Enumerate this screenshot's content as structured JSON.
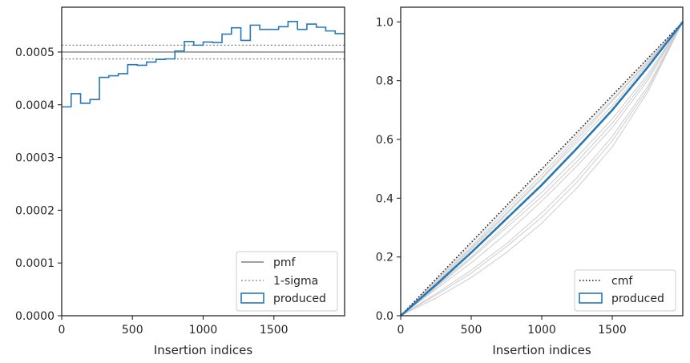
{
  "colors": {
    "hist": "#2878b5",
    "pmf": "#808080",
    "sigma": "#808080",
    "cmf": "#111111",
    "sample": "#c8c8c8",
    "axes": "#262626",
    "legend_border": "#cccccc"
  },
  "chart_data": [
    {
      "type": "histogram-step",
      "xlabel": "Insertion indices",
      "xlim": [
        0,
        2000
      ],
      "ylim": [
        0,
        0.000585
      ],
      "xticks": [
        0,
        500,
        1000,
        1500
      ],
      "xtick_labels": [
        "0",
        "500",
        "1000",
        "1500"
      ],
      "yticks": [
        0,
        0.0001,
        0.0002,
        0.0003,
        0.0004,
        0.0005
      ],
      "ytick_labels": [
        "0.0000",
        "0.0001",
        "0.0002",
        "0.0003",
        "0.0004",
        "0.0005"
      ],
      "pmf": 0.0005,
      "sigma_band": [
        0.000487,
        0.000513
      ],
      "bin_width": 66.67,
      "bin_values": [
        0.000396,
        0.000421,
        0.000403,
        0.00041,
        0.000452,
        0.000455,
        0.000459,
        0.000476,
        0.000475,
        0.000481,
        0.000486,
        0.000487,
        0.000502,
        0.00052,
        0.000513,
        0.000519,
        0.000518,
        0.000534,
        0.000546,
        0.000522,
        0.000551,
        0.000543,
        0.000543,
        0.000548,
        0.000558,
        0.000543,
        0.000553,
        0.000547,
        0.00054,
        0.000535
      ],
      "legend": {
        "placement": "lower-right",
        "entries": [
          {
            "label": "pmf",
            "style": "solid-gray"
          },
          {
            "label": "1-sigma",
            "style": "dotted-gray"
          },
          {
            "label": "produced",
            "style": "box-blue"
          }
        ]
      }
    },
    {
      "type": "line",
      "xlabel": "Insertion indices",
      "xlim": [
        0,
        2000
      ],
      "ylim": [
        0,
        1.05
      ],
      "xticks": [
        0,
        500,
        1000,
        1500
      ],
      "xtick_labels": [
        "0",
        "500",
        "1000",
        "1500"
      ],
      "yticks": [
        0,
        0.2,
        0.4,
        0.6,
        0.8,
        1.0
      ],
      "ytick_labels": [
        "0.0",
        "0.2",
        "0.4",
        "0.6",
        "0.8",
        "1.0"
      ],
      "cmf": {
        "x": [
          0,
          2000
        ],
        "y": [
          0,
          1
        ]
      },
      "produced": {
        "x": [
          0,
          250,
          500,
          750,
          1000,
          1250,
          1500,
          1750,
          2000
        ],
        "y": [
          0,
          0.105,
          0.215,
          0.33,
          0.445,
          0.57,
          0.7,
          0.845,
          1.0
        ]
      },
      "samples_y": [
        [
          0,
          0.12,
          0.235,
          0.36,
          0.48,
          0.61,
          0.735,
          0.865,
          1.0
        ],
        [
          0,
          0.1,
          0.2,
          0.31,
          0.42,
          0.54,
          0.67,
          0.82,
          1.0
        ],
        [
          0,
          0.09,
          0.18,
          0.28,
          0.39,
          0.51,
          0.64,
          0.8,
          1.0
        ],
        [
          0,
          0.075,
          0.155,
          0.245,
          0.35,
          0.47,
          0.61,
          0.78,
          1.0
        ],
        [
          0,
          0.06,
          0.13,
          0.215,
          0.315,
          0.435,
          0.575,
          0.76,
          1.0
        ],
        [
          0,
          0.11,
          0.225,
          0.345,
          0.465,
          0.59,
          0.715,
          0.855,
          1.0
        ],
        [
          0,
          0.095,
          0.195,
          0.3,
          0.405,
          0.525,
          0.655,
          0.81,
          1.0
        ],
        [
          0,
          0.122,
          0.245,
          0.37,
          0.495,
          0.62,
          0.745,
          0.872,
          1.0
        ],
        [
          0,
          0.07,
          0.145,
          0.235,
          0.335,
          0.455,
          0.595,
          0.77,
          1.0
        ],
        [
          0,
          0.115,
          0.23,
          0.35,
          0.47,
          0.6,
          0.73,
          0.86,
          1.0
        ]
      ],
      "legend": {
        "placement": "lower-right",
        "entries": [
          {
            "label": "cmf",
            "style": "dotted-black"
          },
          {
            "label": "produced",
            "style": "box-blue"
          }
        ]
      }
    }
  ]
}
